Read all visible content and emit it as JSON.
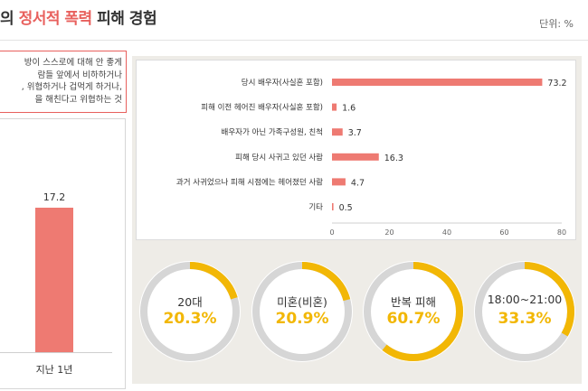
{
  "header": {
    "title_prefix": "의",
    "title_accent": "정서적 폭력",
    "title_suffix": "피해 경험",
    "unit": "단위: %"
  },
  "definition_lines": [
    "방이 스스로에 대해 안 좋게",
    "람들 앞에서 비하하거나",
    ", 위협하거나 겁먹게 하거나,",
    "을 해친다고 위협하는 것"
  ],
  "left_chart": {
    "category": "지난 1년",
    "value": 17.2,
    "value_label": "17.2"
  },
  "chart_data": {
    "type": "bar",
    "orientation": "horizontal",
    "categories": [
      "당시 배우자(사실혼 포함)",
      "피해 이전 헤어진 배우자(사실혼 포함)",
      "배우자가 아닌 가족구성원, 친척",
      "피해 당시 사귀고 있던 사람",
      "과거 사귀었으나 피해 시점에는 헤어졌던 사람",
      "기타"
    ],
    "values": [
      73.2,
      1.6,
      3.7,
      16.3,
      4.7,
      0.5
    ],
    "value_labels": [
      "73.2",
      "1.6",
      "3.7",
      "16.3",
      "4.7",
      "0.5"
    ],
    "xlim": [
      0,
      80
    ],
    "xticks": [
      "0",
      "20",
      "40",
      "60",
      "80"
    ],
    "bar_color": "#ee7a72",
    "grid": false
  },
  "donuts": [
    {
      "label": "20대",
      "value": 20.3,
      "value_label": "20.3%"
    },
    {
      "label": "미혼(비혼)",
      "value": 20.9,
      "value_label": "20.9%"
    },
    {
      "label": "반복 피해",
      "value": 60.7,
      "value_label": "60.7%"
    },
    {
      "label": "18:00~21:00",
      "value": 33.3,
      "value_label": "33.3%"
    }
  ],
  "colors": {
    "accent_red": "#e8605d",
    "bar": "#ee7a72",
    "donut_fill": "#f2b705",
    "donut_track": "#d6d6d6",
    "panel_bg": "#eeece7"
  }
}
